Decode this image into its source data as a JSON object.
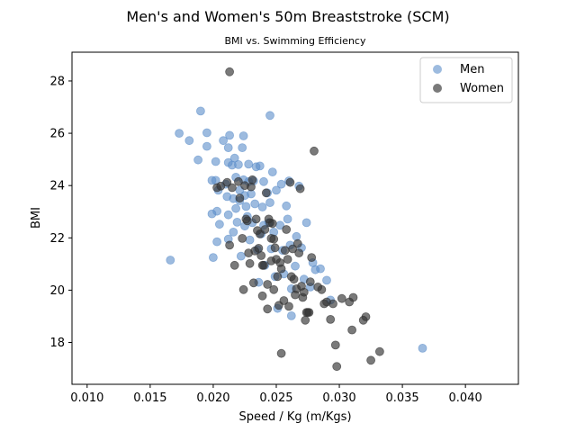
{
  "chart_data": {
    "type": "scatter",
    "title": "Men's and Women's 50m Breaststroke (SCM)",
    "subtitle": "BMI vs. Swimming Efficiency",
    "xlabel": "Speed / Kg (m/Kgs)",
    "ylabel": "BMI",
    "xlim": [
      0.0088,
      0.0442
    ],
    "ylim": [
      16.4,
      29.1
    ],
    "xticks": [
      0.01,
      0.015,
      0.02,
      0.025,
      0.03,
      0.035,
      0.04
    ],
    "xtick_labels": [
      "0.010",
      "0.015",
      "0.020",
      "0.025",
      "0.030",
      "0.035",
      "0.040"
    ],
    "yticks": [
      18,
      20,
      22,
      24,
      26,
      28
    ],
    "ytick_labels": [
      "18",
      "20",
      "22",
      "24",
      "26",
      "28"
    ],
    "grid": false,
    "legend_position": "top-right",
    "series": [
      {
        "name": "Men",
        "color": "#5b8dc9",
        "points": [
          [
            0.0166,
            21.15
          ],
          [
            0.0173,
            26.0
          ],
          [
            0.0181,
            25.72
          ],
          [
            0.0188,
            24.98
          ],
          [
            0.019,
            26.85
          ],
          [
            0.0195,
            26.02
          ],
          [
            0.0195,
            25.5
          ],
          [
            0.0199,
            24.2
          ],
          [
            0.0199,
            22.92
          ],
          [
            0.02,
            21.25
          ],
          [
            0.0202,
            24.92
          ],
          [
            0.0202,
            24.2
          ],
          [
            0.0203,
            23.02
          ],
          [
            0.0203,
            21.85
          ],
          [
            0.0204,
            23.82
          ],
          [
            0.0205,
            22.52
          ],
          [
            0.0208,
            25.72
          ],
          [
            0.021,
            24.05
          ],
          [
            0.0211,
            23.58
          ],
          [
            0.0212,
            25.45
          ],
          [
            0.0212,
            24.88
          ],
          [
            0.0212,
            22.88
          ],
          [
            0.0212,
            21.95
          ],
          [
            0.0213,
            25.92
          ],
          [
            0.0215,
            24.78
          ],
          [
            0.0216,
            23.5
          ],
          [
            0.0216,
            22.22
          ],
          [
            0.0217,
            25.05
          ],
          [
            0.0218,
            24.32
          ],
          [
            0.0218,
            23.12
          ],
          [
            0.0219,
            22.6
          ],
          [
            0.022,
            24.8
          ],
          [
            0.0221,
            23.82
          ],
          [
            0.0221,
            23.42
          ],
          [
            0.0222,
            21.3
          ],
          [
            0.0223,
            25.45
          ],
          [
            0.0224,
            25.9
          ],
          [
            0.0224,
            24.22
          ],
          [
            0.0225,
            23.62
          ],
          [
            0.0225,
            22.45
          ],
          [
            0.0226,
            23.2
          ],
          [
            0.0227,
            22.82
          ],
          [
            0.0228,
            24.82
          ],
          [
            0.0228,
            24.15
          ],
          [
            0.0229,
            21.92
          ],
          [
            0.023,
            23.68
          ],
          [
            0.0231,
            22.58
          ],
          [
            0.0232,
            24.18
          ],
          [
            0.0233,
            23.3
          ],
          [
            0.0234,
            24.72
          ],
          [
            0.0235,
            21.55
          ],
          [
            0.0236,
            20.3
          ],
          [
            0.0237,
            24.75
          ],
          [
            0.0238,
            22.15
          ],
          [
            0.0239,
            23.18
          ],
          [
            0.024,
            24.15
          ],
          [
            0.024,
            22.48
          ],
          [
            0.0241,
            20.95
          ],
          [
            0.0243,
            23.72
          ],
          [
            0.0244,
            22.58
          ],
          [
            0.0245,
            26.68
          ],
          [
            0.0245,
            23.35
          ],
          [
            0.0246,
            21.58
          ],
          [
            0.0247,
            24.52
          ],
          [
            0.0248,
            22.22
          ],
          [
            0.0249,
            20.52
          ],
          [
            0.025,
            23.82
          ],
          [
            0.0251,
            19.3
          ],
          [
            0.0253,
            22.48
          ],
          [
            0.0254,
            24.05
          ],
          [
            0.0255,
            21.52
          ],
          [
            0.0256,
            20.62
          ],
          [
            0.0258,
            23.22
          ],
          [
            0.0259,
            22.72
          ],
          [
            0.026,
            24.18
          ],
          [
            0.0261,
            21.72
          ],
          [
            0.0262,
            20.05
          ],
          [
            0.0262,
            19.02
          ],
          [
            0.0265,
            20.92
          ],
          [
            0.0266,
            22.05
          ],
          [
            0.0268,
            23.98
          ],
          [
            0.027,
            21.62
          ],
          [
            0.0272,
            20.42
          ],
          [
            0.0274,
            22.58
          ],
          [
            0.0277,
            20.12
          ],
          [
            0.0279,
            21.05
          ],
          [
            0.0281,
            20.78
          ],
          [
            0.0285,
            20.82
          ],
          [
            0.029,
            20.38
          ],
          [
            0.0293,
            19.62
          ],
          [
            0.0366,
            17.78
          ]
        ]
      },
      {
        "name": "Women",
        "color": "#333333",
        "points": [
          [
            0.0203,
            23.92
          ],
          [
            0.0206,
            23.98
          ],
          [
            0.0211,
            24.12
          ],
          [
            0.0213,
            28.35
          ],
          [
            0.0213,
            21.72
          ],
          [
            0.0215,
            23.92
          ],
          [
            0.0217,
            20.95
          ],
          [
            0.022,
            24.15
          ],
          [
            0.0221,
            23.52
          ],
          [
            0.0223,
            21.98
          ],
          [
            0.0224,
            20.02
          ],
          [
            0.0225,
            24.0
          ],
          [
            0.0226,
            22.72
          ],
          [
            0.0227,
            22.65
          ],
          [
            0.0228,
            21.42
          ],
          [
            0.0229,
            21.02
          ],
          [
            0.023,
            23.95
          ],
          [
            0.0231,
            24.22
          ],
          [
            0.0232,
            20.28
          ],
          [
            0.0233,
            21.5
          ],
          [
            0.0234,
            22.72
          ],
          [
            0.0235,
            22.28
          ],
          [
            0.0236,
            21.6
          ],
          [
            0.0237,
            22.15
          ],
          [
            0.0238,
            21.32
          ],
          [
            0.0239,
            20.95
          ],
          [
            0.0239,
            19.78
          ],
          [
            0.024,
            20.95
          ],
          [
            0.0241,
            22.32
          ],
          [
            0.0242,
            23.72
          ],
          [
            0.0243,
            20.22
          ],
          [
            0.0243,
            19.28
          ],
          [
            0.0244,
            22.72
          ],
          [
            0.0245,
            22.58
          ],
          [
            0.0246,
            21.98
          ],
          [
            0.0246,
            21.12
          ],
          [
            0.0247,
            22.55
          ],
          [
            0.0248,
            21.95
          ],
          [
            0.0248,
            20.02
          ],
          [
            0.0249,
            21.62
          ],
          [
            0.025,
            21.18
          ],
          [
            0.0251,
            20.52
          ],
          [
            0.0252,
            19.42
          ],
          [
            0.0253,
            21.05
          ],
          [
            0.0254,
            20.82
          ],
          [
            0.0254,
            17.58
          ],
          [
            0.0256,
            19.6
          ],
          [
            0.0257,
            21.52
          ],
          [
            0.0258,
            22.32
          ],
          [
            0.0259,
            21.18
          ],
          [
            0.026,
            19.38
          ],
          [
            0.0261,
            24.12
          ],
          [
            0.0262,
            20.52
          ],
          [
            0.0263,
            21.58
          ],
          [
            0.0264,
            20.42
          ],
          [
            0.0265,
            19.82
          ],
          [
            0.0266,
            20.05
          ],
          [
            0.0267,
            21.78
          ],
          [
            0.0268,
            21.42
          ],
          [
            0.0269,
            23.88
          ],
          [
            0.027,
            20.15
          ],
          [
            0.0271,
            19.72
          ],
          [
            0.0272,
            19.92
          ],
          [
            0.0273,
            18.85
          ],
          [
            0.0274,
            19.15
          ],
          [
            0.0275,
            19.15
          ],
          [
            0.0276,
            19.15
          ],
          [
            0.0277,
            20.32
          ],
          [
            0.0278,
            21.25
          ],
          [
            0.028,
            25.32
          ],
          [
            0.0283,
            20.12
          ],
          [
            0.0286,
            20.02
          ],
          [
            0.0288,
            19.48
          ],
          [
            0.029,
            19.55
          ],
          [
            0.0293,
            18.88
          ],
          [
            0.0295,
            19.48
          ],
          [
            0.0297,
            17.9
          ],
          [
            0.0298,
            17.08
          ],
          [
            0.0302,
            19.68
          ],
          [
            0.0308,
            19.55
          ],
          [
            0.031,
            18.48
          ],
          [
            0.0311,
            19.72
          ],
          [
            0.0319,
            18.85
          ],
          [
            0.0321,
            18.98
          ],
          [
            0.0325,
            17.32
          ],
          [
            0.0332,
            17.65
          ]
        ]
      }
    ]
  }
}
